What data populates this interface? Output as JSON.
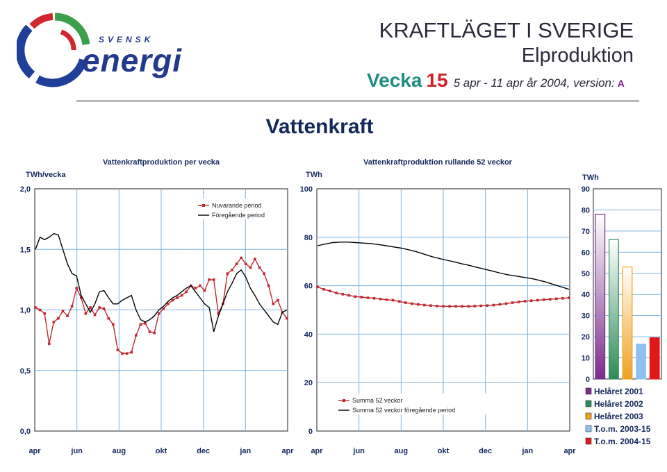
{
  "header": {
    "brand_small": "SVENSK",
    "brand_big": "energi",
    "title": "KRAFTLÄGET I SVERIGE",
    "subtitle": "Elproduktion",
    "week_label": "Vecka",
    "week_number": "15",
    "dates": "5 apr - 11 apr år 2004, version:",
    "version": "A",
    "main_title": "Vattenkraft"
  },
  "colors": {
    "accent_red": "#c0282e",
    "navy": "#14285c",
    "teal": "#1f8c80",
    "grid": "#7ab2e0"
  },
  "chart_data": [
    {
      "type": "line",
      "title": "Vattenkraftproduktion per vecka",
      "ylabel": "TWh/vecka",
      "ylim": [
        0,
        2
      ],
      "yticks": [
        "0,0",
        "0,5",
        "1,0",
        "1,5",
        "2,0"
      ],
      "xticks": [
        "apr",
        "jun",
        "aug",
        "okt",
        "dec",
        "jan",
        "apr"
      ],
      "grid": true,
      "legend": "top-right",
      "series": [
        {
          "name": "Nuvarande period",
          "color": "#c0282e",
          "marker": true,
          "values": [
            1.02,
            1.0,
            0.97,
            0.72,
            0.9,
            0.93,
            0.99,
            0.95,
            1.03,
            1.18,
            1.1,
            0.97,
            1.02,
            0.96,
            1.02,
            1.01,
            0.93,
            0.88,
            0.67,
            0.64,
            0.64,
            0.65,
            0.79,
            0.88,
            0.89,
            0.82,
            0.81,
            0.97,
            1.01,
            1.05,
            1.08,
            1.1,
            1.12,
            1.15,
            1.2,
            1.18,
            1.2,
            1.16,
            1.25,
            1.25,
            0.97,
            1.05,
            1.3,
            1.33,
            1.38,
            1.43,
            1.38,
            1.35,
            1.42,
            1.35,
            1.3,
            1.2,
            1.05,
            1.08,
            0.98,
            0.93
          ]
        },
        {
          "name": "Föregående period",
          "color": "#000000",
          "marker": false,
          "values": [
            1.5,
            1.6,
            1.58,
            1.6,
            1.63,
            1.62,
            1.5,
            1.38,
            1.3,
            1.28,
            1.12,
            1.05,
            0.98,
            1.05,
            1.15,
            1.16,
            1.1,
            1.05,
            1.05,
            1.08,
            1.1,
            1.12,
            1.0,
            0.92,
            0.9,
            0.92,
            0.95,
            1.0,
            1.03,
            1.07,
            1.1,
            1.12,
            1.15,
            1.18,
            1.2,
            1.15,
            1.1,
            1.05,
            1.02,
            0.82,
            0.95,
            1.05,
            1.15,
            1.22,
            1.3,
            1.33,
            1.27,
            1.18,
            1.12,
            1.05,
            1.0,
            0.95,
            0.9,
            0.88,
            0.98,
            1.0
          ]
        }
      ]
    },
    {
      "type": "line",
      "title": "Vattenkraftproduktion rullande 52 veckor",
      "ylabel": "TWh",
      "ylim": [
        0,
        100
      ],
      "yticks": [
        "0",
        "20",
        "40",
        "60",
        "80",
        "100"
      ],
      "xticks": [
        "apr",
        "jun",
        "aug",
        "okt",
        "dec",
        "jan",
        "apr"
      ],
      "grid": true,
      "legend": "bottom-left",
      "series": [
        {
          "name": "Summa 52 veckor",
          "color": "#c0282e",
          "marker": true,
          "values": [
            59.5,
            58.5,
            57.8,
            57.0,
            56.5,
            56.0,
            55.5,
            55.3,
            55.0,
            54.8,
            54.5,
            54.2,
            54.0,
            53.5,
            53.0,
            52.6,
            52.3,
            52.0,
            51.8,
            51.6,
            51.5,
            51.5,
            51.5,
            51.5,
            51.5,
            51.6,
            51.7,
            51.8,
            52.0,
            52.3,
            52.6,
            53.0,
            53.3,
            53.6,
            53.8,
            54.0,
            54.2,
            54.4,
            54.6,
            54.8,
            55.0
          ]
        },
        {
          "name": "Summa 52 veckor föregående period",
          "color": "#000000",
          "marker": false,
          "values": [
            76.5,
            77.2,
            77.8,
            78.0,
            78.0,
            77.8,
            77.6,
            77.4,
            77.0,
            76.5,
            76.0,
            75.5,
            74.8,
            74.0,
            73.0,
            72.0,
            71.2,
            70.5,
            69.8,
            69.0,
            68.3,
            67.5,
            66.8,
            66.0,
            65.2,
            64.5,
            64.0,
            63.5,
            63.0,
            62.3,
            61.5,
            60.5,
            59.5,
            58.5
          ]
        }
      ]
    },
    {
      "type": "bar",
      "ylabel": "TWh",
      "ylim": [
        0,
        90
      ],
      "yticks": [
        "0",
        "10",
        "20",
        "30",
        "40",
        "50",
        "60",
        "70",
        "80",
        "90"
      ],
      "grid": true,
      "legend": "bottom",
      "categories": [
        "Helåret 2001",
        "Helåret 2002",
        "Helåret 2003",
        "T.o.m. 2003-15",
        "T.o.m. 2004-15"
      ],
      "values": [
        78,
        66,
        53,
        16.5,
        19.5
      ],
      "colors": [
        "#7b2c8a",
        "#2e8b5a",
        "#f0a020",
        "#90c0f0",
        "#e01818"
      ]
    }
  ]
}
